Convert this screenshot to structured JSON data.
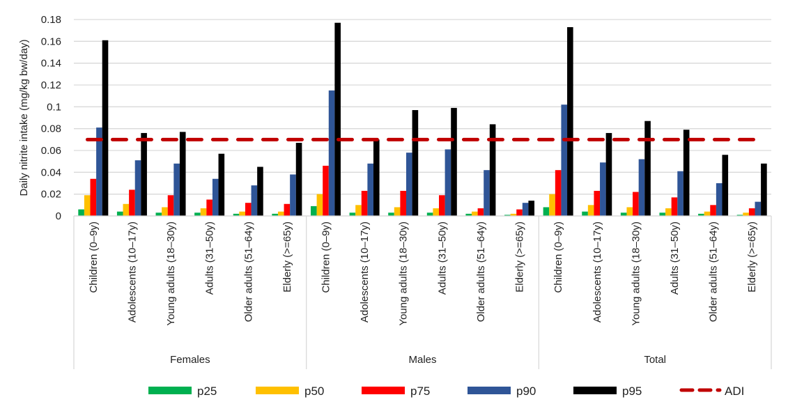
{
  "chart_data": {
    "type": "bar",
    "title": "",
    "ylabel": "Daily nitrite intake (mg/kg bw/day)",
    "xlabel": "",
    "ylim": [
      0,
      0.18
    ],
    "yticks": [
      "0",
      "0.02",
      "0.04",
      "0.06",
      "0.08",
      "0.1",
      "0.12",
      "0.14",
      "0.16",
      "0.18"
    ],
    "grid": true,
    "legend_position": "bottom",
    "groups": [
      {
        "name": "Females",
        "categories": [
          "Children (0–9y)",
          "Adolescents (10–17y)",
          "Young adults (18–30y)",
          "Adults (31–50y)",
          "Older adults (51–64y)",
          "Elderly (>=65y)"
        ]
      },
      {
        "name": "Males",
        "categories": [
          "Children (0–9y)",
          "Adolescents (10–17y)",
          "Young adults (18–30y)",
          "Adults (31–50y)",
          "Older adults (51–64y)",
          "Elderly (>=65y)"
        ]
      },
      {
        "name": "Total",
        "categories": [
          "Children (0–9y)",
          "Adolescents (10–17y)",
          "Young adults (18–30y)",
          "Adults (31–50y)",
          "Older adults (51–64y)",
          "Elderly (>=65y)"
        ]
      }
    ],
    "series": [
      {
        "name": "p25",
        "color": "#00b050",
        "values": [
          0.006,
          0.004,
          0.003,
          0.003,
          0.002,
          0.002,
          0.009,
          0.003,
          0.003,
          0.003,
          0.002,
          0.001,
          0.008,
          0.004,
          0.003,
          0.003,
          0.002,
          0.001
        ]
      },
      {
        "name": "p50",
        "color": "#ffc000",
        "values": [
          0.019,
          0.011,
          0.008,
          0.007,
          0.004,
          0.004,
          0.02,
          0.01,
          0.008,
          0.007,
          0.004,
          0.002,
          0.02,
          0.01,
          0.008,
          0.007,
          0.004,
          0.003
        ]
      },
      {
        "name": "p75",
        "color": "#ff0000",
        "values": [
          0.034,
          0.024,
          0.019,
          0.015,
          0.012,
          0.011,
          0.046,
          0.023,
          0.023,
          0.019,
          0.007,
          0.006,
          0.042,
          0.023,
          0.022,
          0.017,
          0.01,
          0.007
        ]
      },
      {
        "name": "p90",
        "color": "#2f5597",
        "values": [
          0.081,
          0.051,
          0.048,
          0.034,
          0.028,
          0.038,
          0.115,
          0.048,
          0.058,
          0.061,
          0.042,
          0.012,
          0.102,
          0.049,
          0.052,
          0.041,
          0.03,
          0.013
        ]
      },
      {
        "name": "p95",
        "color": "#000000",
        "values": [
          0.161,
          0.076,
          0.077,
          0.057,
          0.045,
          0.067,
          0.177,
          0.07,
          0.097,
          0.099,
          0.084,
          0.014,
          0.173,
          0.076,
          0.087,
          0.079,
          0.056,
          0.048
        ]
      }
    ],
    "reference_line": {
      "name": "ADI",
      "value": 0.07,
      "color": "#c00000",
      "style": "dashed"
    }
  }
}
